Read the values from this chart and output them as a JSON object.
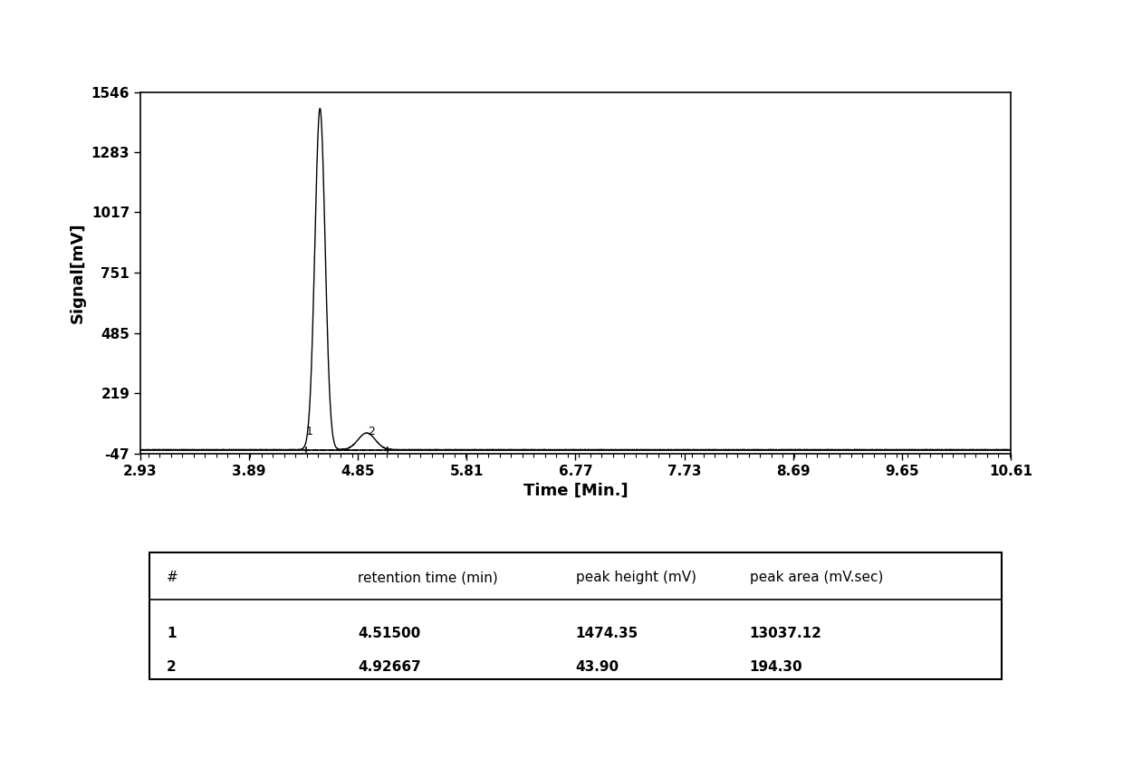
{
  "xlim": [
    2.93,
    10.61
  ],
  "ylim": [
    -47,
    1546
  ],
  "xticks": [
    2.93,
    3.89,
    4.85,
    5.81,
    6.77,
    7.73,
    8.69,
    9.65,
    10.61
  ],
  "yticks": [
    -47,
    219,
    485,
    751,
    1017,
    1283,
    1546
  ],
  "xlabel": "Time [Min.]",
  "ylabel": "Signal[mV]",
  "peak1_rt": 4.515,
  "peak1_height": 1474.35,
  "peak2_rt": 4.92667,
  "peak2_height": 43.9,
  "baseline_level": -30,
  "table_headers": [
    "#",
    "retention time (min)",
    "peak height (mV)",
    "peak area (mV.sec)"
  ],
  "table_rows": [
    [
      "1",
      "4.51500",
      "1474.35",
      "13037.12"
    ],
    [
      "2",
      "4.92667",
      "43.90",
      "194.30"
    ]
  ],
  "line_color": "#000000",
  "background_color": "#ffffff",
  "label1": "1",
  "label2": "2",
  "sigma1": 0.045,
  "sigma2": 0.075,
  "dashed_start": 4.38,
  "dashed_end": 5.13,
  "tick_marks": [
    4.395,
    5.115
  ]
}
